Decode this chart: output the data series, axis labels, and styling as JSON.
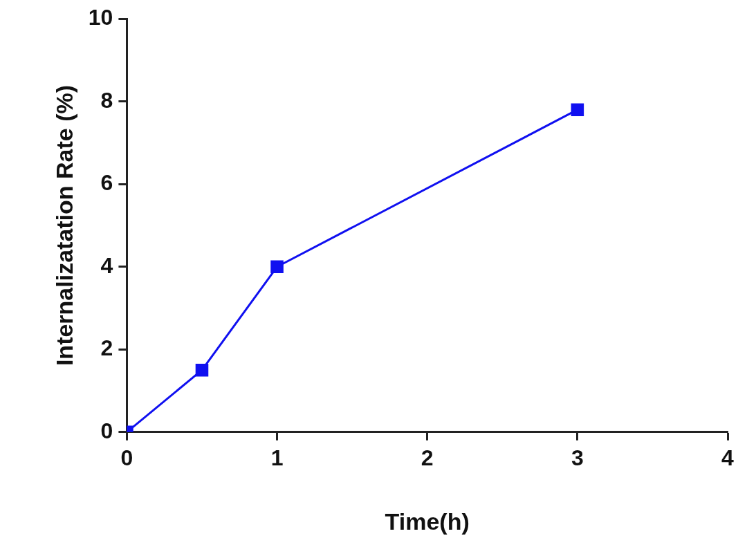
{
  "chart_data": {
    "type": "line",
    "xlabel": "Time(h)",
    "ylabel": "Internalizatation Rate (%)",
    "x": [
      0,
      0.5,
      1,
      3
    ],
    "series": [
      {
        "color": "#1010f0",
        "values": [
          0,
          1.5,
          4.0,
          7.8
        ]
      }
    ],
    "xlim": [
      0,
      4
    ],
    "xticks": [
      0,
      1,
      2,
      3,
      4
    ],
    "ylim": [
      0,
      10
    ],
    "yticks": [
      0,
      2,
      4,
      6,
      8,
      10
    ],
    "marker": "square",
    "line_style": "solid",
    "grid": false,
    "legend": false
  }
}
